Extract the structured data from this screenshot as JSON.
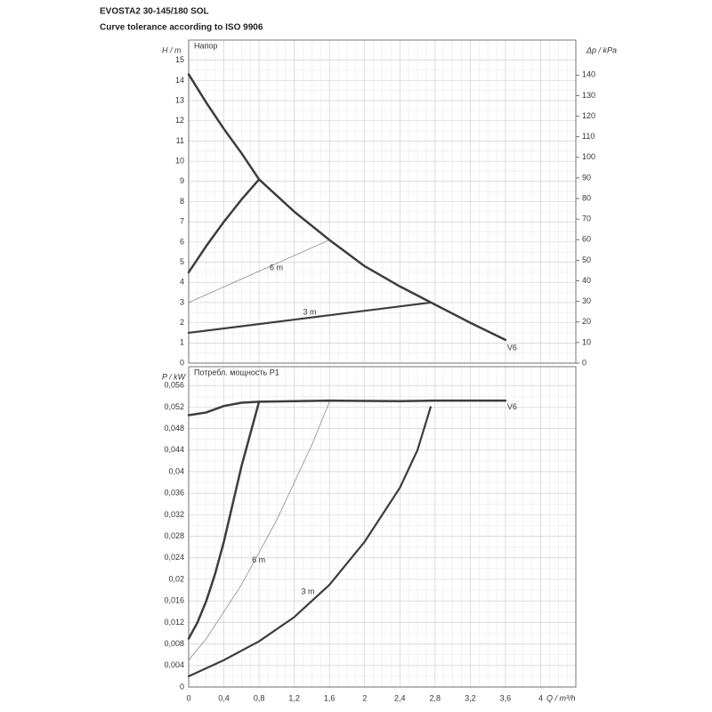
{
  "title": "EVOSTA2 30-145/180 SOL",
  "subtitle": "Curve tolerance according to ISO 9906",
  "chart_data": [
    {
      "type": "line",
      "panel_label": "Напор",
      "ylabel": "H / m",
      "y2label": "Δp / kPa",
      "xlim": [
        0,
        4.4
      ],
      "show_xtick_labels": false,
      "xticks": [
        0,
        {
          "value": 0.4,
          "label": "0,4"
        },
        {
          "value": 0.8,
          "label": "0,8"
        },
        {
          "value": 1.2,
          "label": "1,2"
        },
        {
          "value": 1.6,
          "label": "1,6"
        },
        2,
        {
          "value": 2.4,
          "label": "2,4"
        },
        {
          "value": 2.8,
          "label": "2,8"
        },
        {
          "value": 3.2,
          "label": "3,2"
        },
        {
          "value": 3.6,
          "label": "3,6"
        },
        4
      ],
      "ylim": [
        0,
        16
      ],
      "yticks": [
        0,
        1,
        2,
        3,
        4,
        5,
        6,
        7,
        8,
        9,
        10,
        11,
        12,
        13,
        14,
        15
      ],
      "y2lim": [
        0,
        157
      ],
      "y2ticks": [
        0,
        10,
        20,
        30,
        40,
        50,
        60,
        70,
        80,
        90,
        100,
        110,
        120,
        130,
        140
      ],
      "grid": true,
      "series": [
        {
          "color": "#3a3d42",
          "width": 2.5,
          "x": [
            0,
            0.2,
            0.4,
            0.6,
            0.8,
            1.2,
            1.6,
            2.0,
            2.4,
            2.8,
            3.2,
            3.6
          ],
          "values": [
            14.3,
            12.9,
            11.6,
            10.4,
            9.1,
            7.5,
            6.1,
            4.8,
            3.8,
            2.9,
            2.0,
            1.15
          ]
        },
        {
          "color": "#3a3d42",
          "width": 2.5,
          "x": [
            0,
            0.2,
            0.4,
            0.6,
            0.8
          ],
          "values": [
            4.5,
            5.8,
            7.0,
            8.1,
            9.1
          ]
        },
        {
          "color": "#6a6d72",
          "width": 0.6,
          "x": [
            0,
            1.6
          ],
          "values": [
            3.0,
            6.1
          ]
        },
        {
          "color": "#3a3d42",
          "width": 2.2,
          "x": [
            0,
            2.75
          ],
          "values": [
            1.5,
            3.0
          ]
        }
      ],
      "annotations": [
        {
          "text": "V6",
          "x": 3.62,
          "y": 0.75
        },
        {
          "text": "6 m",
          "x": 0.92,
          "y": 4.7
        },
        {
          "text": "3 m",
          "x": 1.3,
          "y": 2.5
        }
      ]
    },
    {
      "type": "line",
      "panel_label": "Потребл. мощность P1",
      "ylabel": "P / kW",
      "xlabel": "Q / m³/h",
      "xlim": [
        0,
        4.4
      ],
      "show_xtick_labels": true,
      "xticks": [
        0,
        {
          "value": 0.4,
          "label": "0,4"
        },
        {
          "value": 0.8,
          "label": "0,8"
        },
        {
          "value": 1.2,
          "label": "1,2"
        },
        {
          "value": 1.6,
          "label": "1,6"
        },
        2,
        {
          "value": 2.4,
          "label": "2,4"
        },
        {
          "value": 2.8,
          "label": "2,8"
        },
        {
          "value": 3.2,
          "label": "3,2"
        },
        {
          "value": 3.6,
          "label": "3,6"
        },
        4
      ],
      "ylim": [
        0,
        0.0595
      ],
      "yticks": [
        0,
        {
          "value": 0.004,
          "label": "0,004"
        },
        {
          "value": 0.008,
          "label": "0,008"
        },
        {
          "value": 0.012,
          "label": "0,012"
        },
        {
          "value": 0.016,
          "label": "0,016"
        },
        {
          "value": 0.02,
          "label": "0,02"
        },
        {
          "value": 0.024,
          "label": "0,024"
        },
        {
          "value": 0.028,
          "label": "0,028"
        },
        {
          "value": 0.032,
          "label": "0,032"
        },
        {
          "value": 0.036,
          "label": "0,036"
        },
        {
          "value": 0.04,
          "label": "0,04"
        },
        {
          "value": 0.044,
          "label": "0,044"
        },
        {
          "value": 0.048,
          "label": "0,048"
        },
        {
          "value": 0.052,
          "label": "0,052"
        },
        {
          "value": 0.056,
          "label": "0,056"
        }
      ],
      "grid": true,
      "series": [
        {
          "color": "#3a3d42",
          "width": 2.5,
          "x": [
            0,
            0.2,
            0.4,
            0.6,
            0.8,
            1.6,
            2.4,
            2.8,
            3.6
          ],
          "values": [
            0.0505,
            0.051,
            0.0522,
            0.0528,
            0.053,
            0.0532,
            0.0531,
            0.0532,
            0.0532
          ]
        },
        {
          "color": "#3a3d42",
          "width": 2.5,
          "x": [
            0,
            0.1,
            0.2,
            0.3,
            0.4,
            0.5,
            0.6,
            0.7,
            0.8
          ],
          "values": [
            0.009,
            0.012,
            0.016,
            0.021,
            0.027,
            0.034,
            0.041,
            0.047,
            0.053
          ]
        },
        {
          "color": "#6a6d72",
          "width": 0.6,
          "x": [
            0,
            0.2,
            0.4,
            0.6,
            0.8,
            1.0,
            1.2,
            1.4,
            1.6
          ],
          "values": [
            0.005,
            0.009,
            0.014,
            0.019,
            0.025,
            0.031,
            0.038,
            0.045,
            0.053
          ]
        },
        {
          "color": "#3a3d42",
          "width": 2.2,
          "x": [
            0,
            0.4,
            0.8,
            1.2,
            1.6,
            2.0,
            2.4,
            2.6,
            2.75
          ],
          "values": [
            0.002,
            0.005,
            0.0085,
            0.013,
            0.019,
            0.027,
            0.037,
            0.044,
            0.052
          ]
        }
      ],
      "annotations": [
        {
          "text": "V6",
          "x": 3.62,
          "y": 0.052
        },
        {
          "text": "6 m",
          "x": 0.72,
          "y": 0.0235
        },
        {
          "text": "3 m",
          "x": 1.28,
          "y": 0.0177
        }
      ]
    }
  ]
}
